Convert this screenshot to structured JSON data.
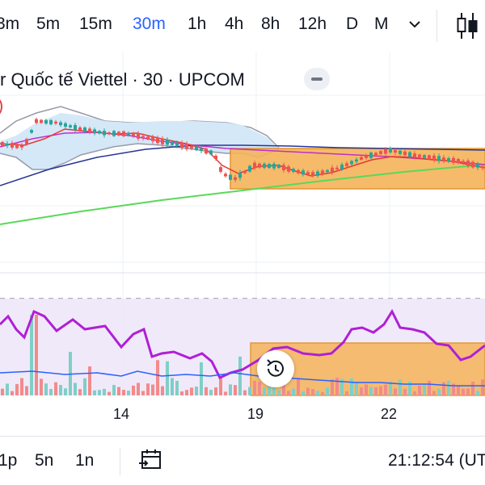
{
  "toolbar": {
    "timeframes": [
      "3m",
      "5m",
      "15m",
      "30m",
      "1h",
      "4h",
      "8h",
      "12h",
      "D",
      "M"
    ],
    "active_timeframe": "30m",
    "more_icon": "chevron-down-icon",
    "chart_type_icon": "candlestick-icon"
  },
  "symbol": {
    "title": "r Quốc tế Viettel · 30 · UPCOM",
    "fragment": ")"
  },
  "x_axis": {
    "labels": [
      "14",
      "19",
      "22"
    ]
  },
  "bottom": {
    "ranges": [
      "1p",
      "5n",
      "1n"
    ],
    "date_range_icon": "calendar-icon",
    "clock": "21:12:54 (UT"
  },
  "colors": {
    "accent": "#2962ff",
    "up": "#26a69a",
    "down": "#ef5350",
    "oscillator": "#b01fd6",
    "highlight_zone": "#f2a33a",
    "long_ma": "#4cd64c",
    "bollinger_fill": "#d4e8f8"
  }
}
